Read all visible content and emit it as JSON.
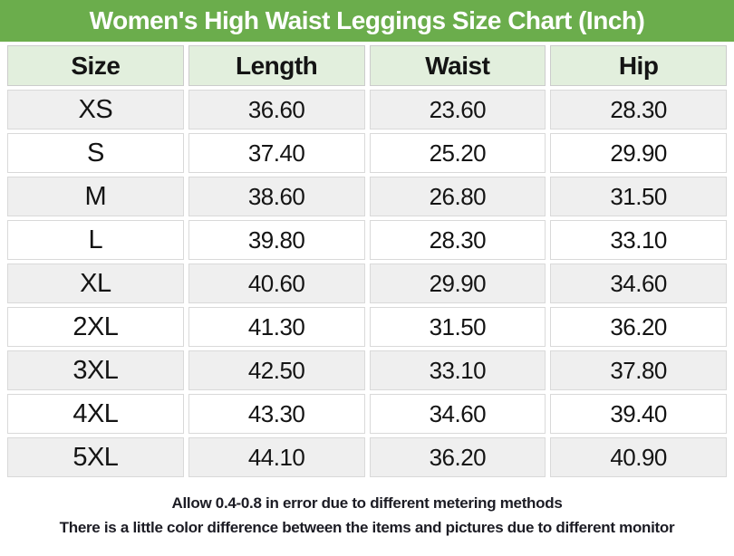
{
  "chart_data": {
    "type": "table",
    "title": "Women's High Waist Leggings Size Chart (Inch)",
    "unit": "Inch",
    "columns": [
      "Size",
      "Length",
      "Waist",
      "Hip"
    ],
    "rows": [
      [
        "XS",
        "36.60",
        "23.60",
        "28.30"
      ],
      [
        "S",
        "37.40",
        "25.20",
        "29.90"
      ],
      [
        "M",
        "38.60",
        "26.80",
        "31.50"
      ],
      [
        "L",
        "39.80",
        "28.30",
        "33.10"
      ],
      [
        "XL",
        "40.60",
        "29.90",
        "34.60"
      ],
      [
        "2XL",
        "41.30",
        "31.50",
        "36.20"
      ],
      [
        "3XL",
        "42.50",
        "33.10",
        "37.80"
      ],
      [
        "4XL",
        "43.30",
        "34.60",
        "39.40"
      ],
      [
        "5XL",
        "44.10",
        "36.20",
        "40.90"
      ]
    ],
    "notes": [
      "Allow 0.4-0.8 in error due to different metering methods",
      "There is a little color difference between the items and pictures due to different monitor"
    ]
  },
  "colors": {
    "title_bar_green": "#6bad4c",
    "header_mint": "#e2efdd",
    "row_alternate_gray": "#efefef",
    "row_white": "#ffffff",
    "title_text": "#ffffff",
    "body_text": "#141414"
  }
}
